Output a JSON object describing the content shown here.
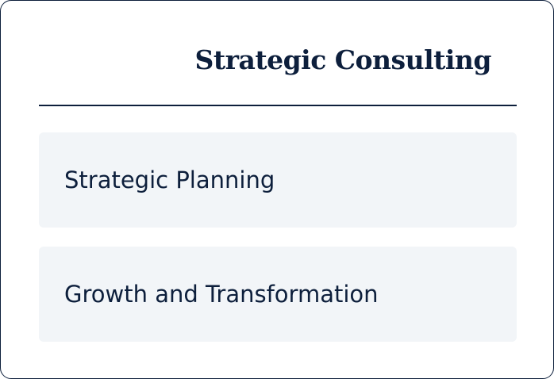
{
  "card": {
    "title": "Strategic Consulting",
    "services": [
      {
        "label": "Strategic Planning"
      },
      {
        "label": "Growth and Transformation"
      }
    ]
  },
  "colors": {
    "navy": "#0d1f3c",
    "item_background": "#f2f5f8",
    "card_background": "#ffffff"
  }
}
